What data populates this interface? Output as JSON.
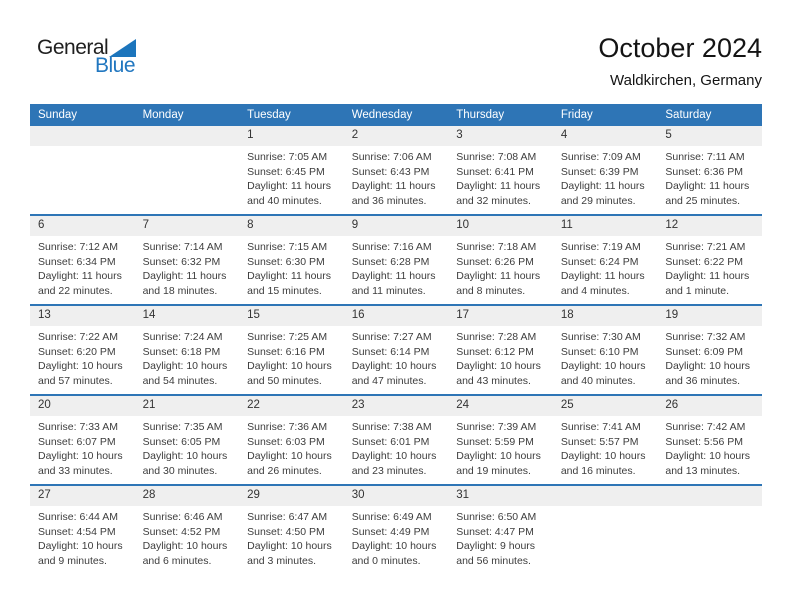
{
  "logo": {
    "general": "General",
    "blue": "Blue"
  },
  "header": {
    "title": "October 2024",
    "location": "Waldkirchen, Germany"
  },
  "colors": {
    "accent": "#2E75B6",
    "header_text": "#FFFFFF",
    "day_band": "#EFEFEF",
    "logo_blue": "#1C75BC",
    "body_text": "#3D3D3D"
  },
  "calendar": {
    "weekdays": [
      "Sunday",
      "Monday",
      "Tuesday",
      "Wednesday",
      "Thursday",
      "Friday",
      "Saturday"
    ],
    "labels": {
      "sunrise": "Sunrise:",
      "sunset": "Sunset:",
      "daylight": "Daylight:"
    },
    "weeks": [
      [
        null,
        null,
        {
          "day": "1",
          "sunrise": "7:05 AM",
          "sunset": "6:45 PM",
          "daylight": "11 hours and 40 minutes."
        },
        {
          "day": "2",
          "sunrise": "7:06 AM",
          "sunset": "6:43 PM",
          "daylight": "11 hours and 36 minutes."
        },
        {
          "day": "3",
          "sunrise": "7:08 AM",
          "sunset": "6:41 PM",
          "daylight": "11 hours and 32 minutes."
        },
        {
          "day": "4",
          "sunrise": "7:09 AM",
          "sunset": "6:39 PM",
          "daylight": "11 hours and 29 minutes."
        },
        {
          "day": "5",
          "sunrise": "7:11 AM",
          "sunset": "6:36 PM",
          "daylight": "11 hours and 25 minutes."
        }
      ],
      [
        {
          "day": "6",
          "sunrise": "7:12 AM",
          "sunset": "6:34 PM",
          "daylight": "11 hours and 22 minutes."
        },
        {
          "day": "7",
          "sunrise": "7:14 AM",
          "sunset": "6:32 PM",
          "daylight": "11 hours and 18 minutes."
        },
        {
          "day": "8",
          "sunrise": "7:15 AM",
          "sunset": "6:30 PM",
          "daylight": "11 hours and 15 minutes."
        },
        {
          "day": "9",
          "sunrise": "7:16 AM",
          "sunset": "6:28 PM",
          "daylight": "11 hours and 11 minutes."
        },
        {
          "day": "10",
          "sunrise": "7:18 AM",
          "sunset": "6:26 PM",
          "daylight": "11 hours and 8 minutes."
        },
        {
          "day": "11",
          "sunrise": "7:19 AM",
          "sunset": "6:24 PM",
          "daylight": "11 hours and 4 minutes."
        },
        {
          "day": "12",
          "sunrise": "7:21 AM",
          "sunset": "6:22 PM",
          "daylight": "11 hours and 1 minute."
        }
      ],
      [
        {
          "day": "13",
          "sunrise": "7:22 AM",
          "sunset": "6:20 PM",
          "daylight": "10 hours and 57 minutes."
        },
        {
          "day": "14",
          "sunrise": "7:24 AM",
          "sunset": "6:18 PM",
          "daylight": "10 hours and 54 minutes."
        },
        {
          "day": "15",
          "sunrise": "7:25 AM",
          "sunset": "6:16 PM",
          "daylight": "10 hours and 50 minutes."
        },
        {
          "day": "16",
          "sunrise": "7:27 AM",
          "sunset": "6:14 PM",
          "daylight": "10 hours and 47 minutes."
        },
        {
          "day": "17",
          "sunrise": "7:28 AM",
          "sunset": "6:12 PM",
          "daylight": "10 hours and 43 minutes."
        },
        {
          "day": "18",
          "sunrise": "7:30 AM",
          "sunset": "6:10 PM",
          "daylight": "10 hours and 40 minutes."
        },
        {
          "day": "19",
          "sunrise": "7:32 AM",
          "sunset": "6:09 PM",
          "daylight": "10 hours and 36 minutes."
        }
      ],
      [
        {
          "day": "20",
          "sunrise": "7:33 AM",
          "sunset": "6:07 PM",
          "daylight": "10 hours and 33 minutes."
        },
        {
          "day": "21",
          "sunrise": "7:35 AM",
          "sunset": "6:05 PM",
          "daylight": "10 hours and 30 minutes."
        },
        {
          "day": "22",
          "sunrise": "7:36 AM",
          "sunset": "6:03 PM",
          "daylight": "10 hours and 26 minutes."
        },
        {
          "day": "23",
          "sunrise": "7:38 AM",
          "sunset": "6:01 PM",
          "daylight": "10 hours and 23 minutes."
        },
        {
          "day": "24",
          "sunrise": "7:39 AM",
          "sunset": "5:59 PM",
          "daylight": "10 hours and 19 minutes."
        },
        {
          "day": "25",
          "sunrise": "7:41 AM",
          "sunset": "5:57 PM",
          "daylight": "10 hours and 16 minutes."
        },
        {
          "day": "26",
          "sunrise": "7:42 AM",
          "sunset": "5:56 PM",
          "daylight": "10 hours and 13 minutes."
        }
      ],
      [
        {
          "day": "27",
          "sunrise": "6:44 AM",
          "sunset": "4:54 PM",
          "daylight": "10 hours and 9 minutes."
        },
        {
          "day": "28",
          "sunrise": "6:46 AM",
          "sunset": "4:52 PM",
          "daylight": "10 hours and 6 minutes."
        },
        {
          "day": "29",
          "sunrise": "6:47 AM",
          "sunset": "4:50 PM",
          "daylight": "10 hours and 3 minutes."
        },
        {
          "day": "30",
          "sunrise": "6:49 AM",
          "sunset": "4:49 PM",
          "daylight": "10 hours and 0 minutes."
        },
        {
          "day": "31",
          "sunrise": "6:50 AM",
          "sunset": "4:47 PM",
          "daylight": "9 hours and 56 minutes."
        },
        null,
        null
      ]
    ]
  }
}
